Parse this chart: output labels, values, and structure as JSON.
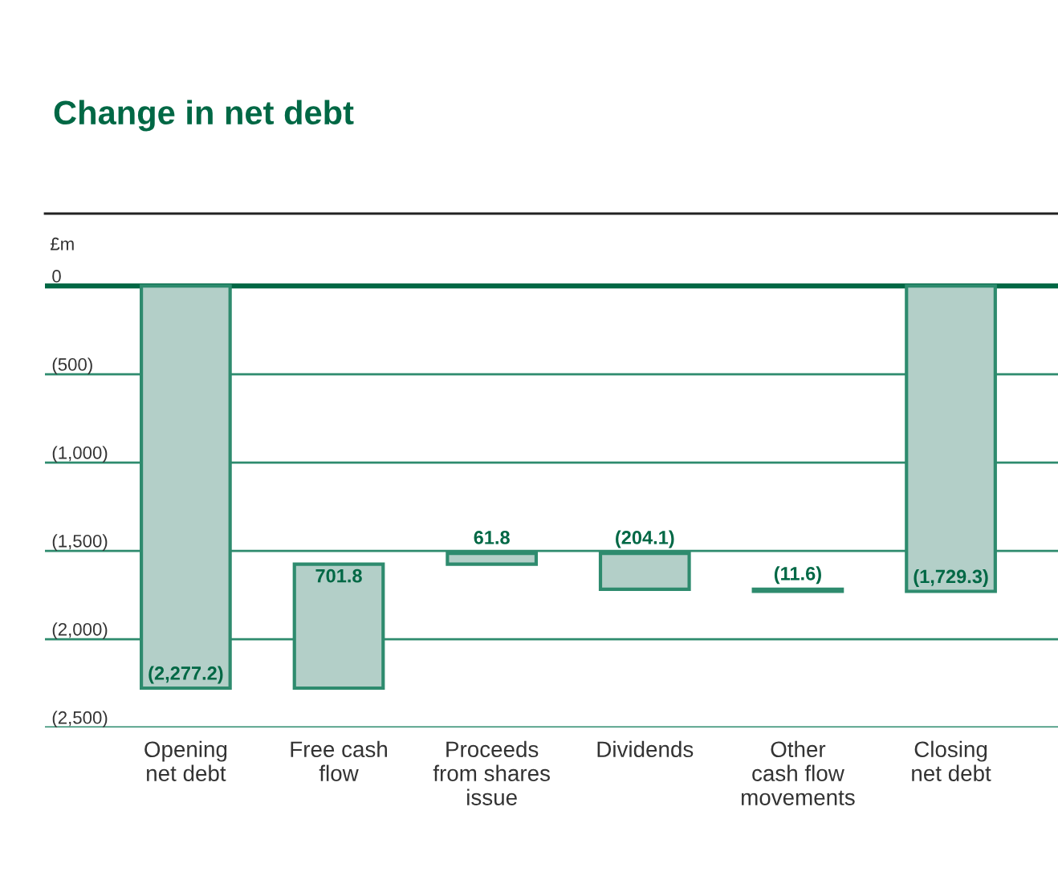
{
  "chart_data": {
    "type": "bar",
    "title": "Change in net debt",
    "ylabel": "£m",
    "categories": [
      "Opening\nnet debt",
      "Free cash\nflow",
      "Proceeds\nfrom shares\nissue",
      "Dividends",
      "Other\ncash flow\nmovements",
      "Closing\nnet debt"
    ],
    "values": [
      -2277.2,
      701.8,
      61.8,
      -204.1,
      -11.6,
      -1729.3
    ],
    "base": [
      0,
      -2277.2,
      -1575.4,
      -1513.6,
      -1717.7,
      0
    ],
    "value_labels": [
      "(2,277.2)",
      "701.8",
      "61.8",
      "(204.1)",
      "(11.6)",
      "(1,729.3)"
    ],
    "color": "#b3cfc8",
    "ylim": [
      -2500,
      410
    ],
    "yticks": [
      {
        "value": 0,
        "label": "0"
      },
      {
        "value": -500,
        "label": "(500)"
      },
      {
        "value": -1000,
        "label": "(1,000)"
      },
      {
        "value": -1500,
        "label": "(1,500)"
      },
      {
        "value": -2000,
        "label": "(2,000)"
      },
      {
        "value": -2500,
        "label": "(2,500)"
      }
    ],
    "grid": "y",
    "ref_lines": [
      {
        "axis": "y",
        "value": 0,
        "color": "#006845"
      }
    ]
  }
}
